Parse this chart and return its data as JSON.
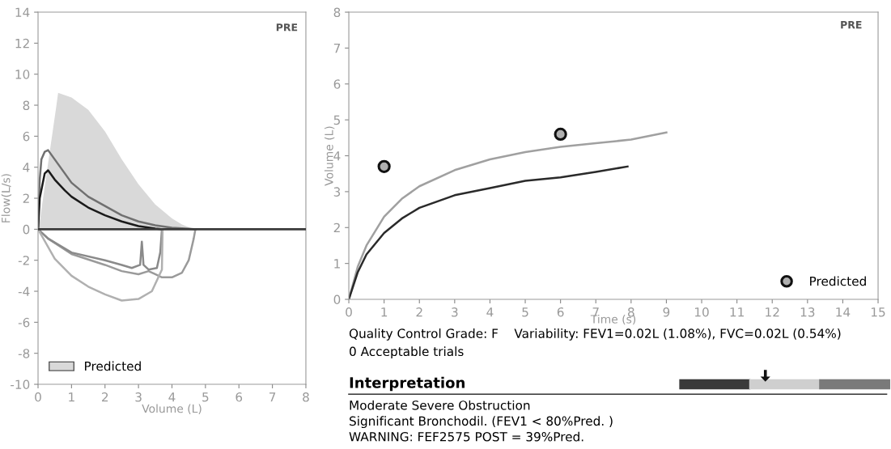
{
  "chart_data": [
    {
      "type": "line",
      "xlabel": "Volume (L)",
      "ylabel": "Flow(L/s)",
      "xlim": [
        0,
        8
      ],
      "ylim": [
        -10,
        14
      ],
      "xticks": [
        0,
        1,
        2,
        3,
        4,
        5,
        6,
        7,
        8
      ],
      "yticks": [
        -10,
        -8,
        -6,
        -4,
        -2,
        0,
        2,
        4,
        6,
        8,
        10,
        12,
        14
      ],
      "grid": false,
      "legend": "bottom left",
      "marker": "none",
      "line_style": "solid",
      "annotations": [
        "PRE"
      ],
      "ref_lines": [
        {
          "axis": "y",
          "value": 0,
          "color": "#3a3a3a"
        }
      ],
      "series": [
        {
          "name": "Predicted",
          "type": "area",
          "color": "#d9d9d9",
          "x": [
            0,
            0.05,
            0.55,
            0.6,
            1.0,
            1.5,
            2.0,
            2.5,
            3.0,
            3.5,
            4.0,
            4.3,
            4.6,
            4.7
          ],
          "values": [
            0,
            0.5,
            8.0,
            8.8,
            8.5,
            7.7,
            6.3,
            4.5,
            2.9,
            1.6,
            0.7,
            0.3,
            0.05,
            0
          ]
        },
        {
          "color": "#707070",
          "x": [
            0,
            0.05,
            0.1,
            0.2,
            0.3,
            0.5,
            0.8,
            1.0,
            1.5,
            2.0,
            2.5,
            3.0,
            3.5,
            4.0,
            4.5,
            4.7
          ],
          "values": [
            0,
            3.2,
            4.5,
            5.0,
            5.1,
            4.5,
            3.6,
            3.0,
            2.1,
            1.5,
            0.9,
            0.5,
            0.25,
            0.1,
            0.03,
            0
          ]
        },
        {
          "color": "#1a1a1a",
          "x": [
            0,
            0.05,
            0.2,
            0.3,
            0.5,
            0.8,
            1.0,
            1.5,
            2.0,
            2.5,
            3.0,
            3.5,
            3.7
          ],
          "values": [
            0,
            2.0,
            3.6,
            3.8,
            3.2,
            2.5,
            2.1,
            1.4,
            0.9,
            0.5,
            0.2,
            0.05,
            0
          ]
        },
        {
          "color": "#9a9a9a",
          "x": [
            4.7,
            4.65,
            4.5,
            4.3,
            4.0,
            3.7,
            3.5,
            3.3,
            3.0,
            2.5,
            2.0,
            1.0,
            0.3,
            0
          ],
          "values": [
            0,
            -0.6,
            -2.0,
            -2.8,
            -3.1,
            -3.1,
            -2.9,
            -2.7,
            -2.9,
            -2.7,
            -2.3,
            -1.6,
            -0.6,
            0
          ]
        },
        {
          "color": "#8a8a8a",
          "x": [
            3.7,
            3.65,
            3.55,
            3.3,
            3.15,
            3.1,
            3.05,
            2.8,
            2.5,
            2.0,
            1.0,
            0.3,
            0
          ],
          "values": [
            0,
            -1.5,
            -2.5,
            -2.6,
            -2.3,
            -0.8,
            -2.3,
            -2.5,
            -2.3,
            -2.0,
            -1.5,
            -0.6,
            0
          ]
        },
        {
          "color": "#b0b0b0",
          "x": [
            0,
            0.5,
            1.0,
            1.5,
            2.0,
            2.5,
            3.0,
            3.4,
            3.7,
            3.72
          ],
          "values": [
            0,
            -1.9,
            -3.0,
            -3.7,
            -4.2,
            -4.6,
            -4.5,
            -4.0,
            -2.6,
            0
          ]
        }
      ]
    },
    {
      "type": "line",
      "xlabel": "Time (s)",
      "ylabel": "Volume (L)",
      "xlim": [
        0,
        15
      ],
      "ylim": [
        0,
        8
      ],
      "xticks": [
        0,
        1,
        2,
        3,
        4,
        5,
        6,
        7,
        8,
        9,
        10,
        11,
        12,
        13,
        14,
        15
      ],
      "yticks": [
        0,
        1,
        2,
        3,
        4,
        5,
        6,
        7,
        8
      ],
      "grid": false,
      "legend": "bottom right",
      "marker": "none",
      "line_style": "solid",
      "annotations": [
        "PRE",
        "Quality Control Grade: F    Variability: FEV1=0.02L (1.08%), FVC=0.02L (0.54%)",
        "0 Acceptable trials",
        "Interpretation",
        "Moderate Severe Obstruction",
        "Significant Bronchodil. (FEV1 < 80%Pred. )",
        "WARNING: FEF2575 POST = 39%Pred."
      ],
      "series": [
        {
          "color": "#a0a0a0",
          "x": [
            0,
            0.25,
            0.5,
            1,
            1.5,
            2,
            3,
            4,
            5,
            6,
            7,
            8,
            9
          ],
          "values": [
            0,
            0.9,
            1.5,
            2.3,
            2.8,
            3.15,
            3.6,
            3.9,
            4.1,
            4.25,
            4.35,
            4.45,
            4.65
          ]
        },
        {
          "color": "#2a2a2a",
          "x": [
            0,
            0.25,
            0.5,
            1,
            1.5,
            2,
            3,
            4,
            5,
            6,
            7,
            7.9
          ],
          "values": [
            0,
            0.75,
            1.25,
            1.85,
            2.25,
            2.55,
            2.9,
            3.1,
            3.3,
            3.4,
            3.55,
            3.7
          ]
        },
        {
          "name": "Predicted",
          "type": "scatter",
          "marker": "circle",
          "color": "#b0b0b0",
          "x": [
            1,
            6
          ],
          "values": [
            3.7,
            4.6
          ]
        }
      ]
    }
  ]
}
